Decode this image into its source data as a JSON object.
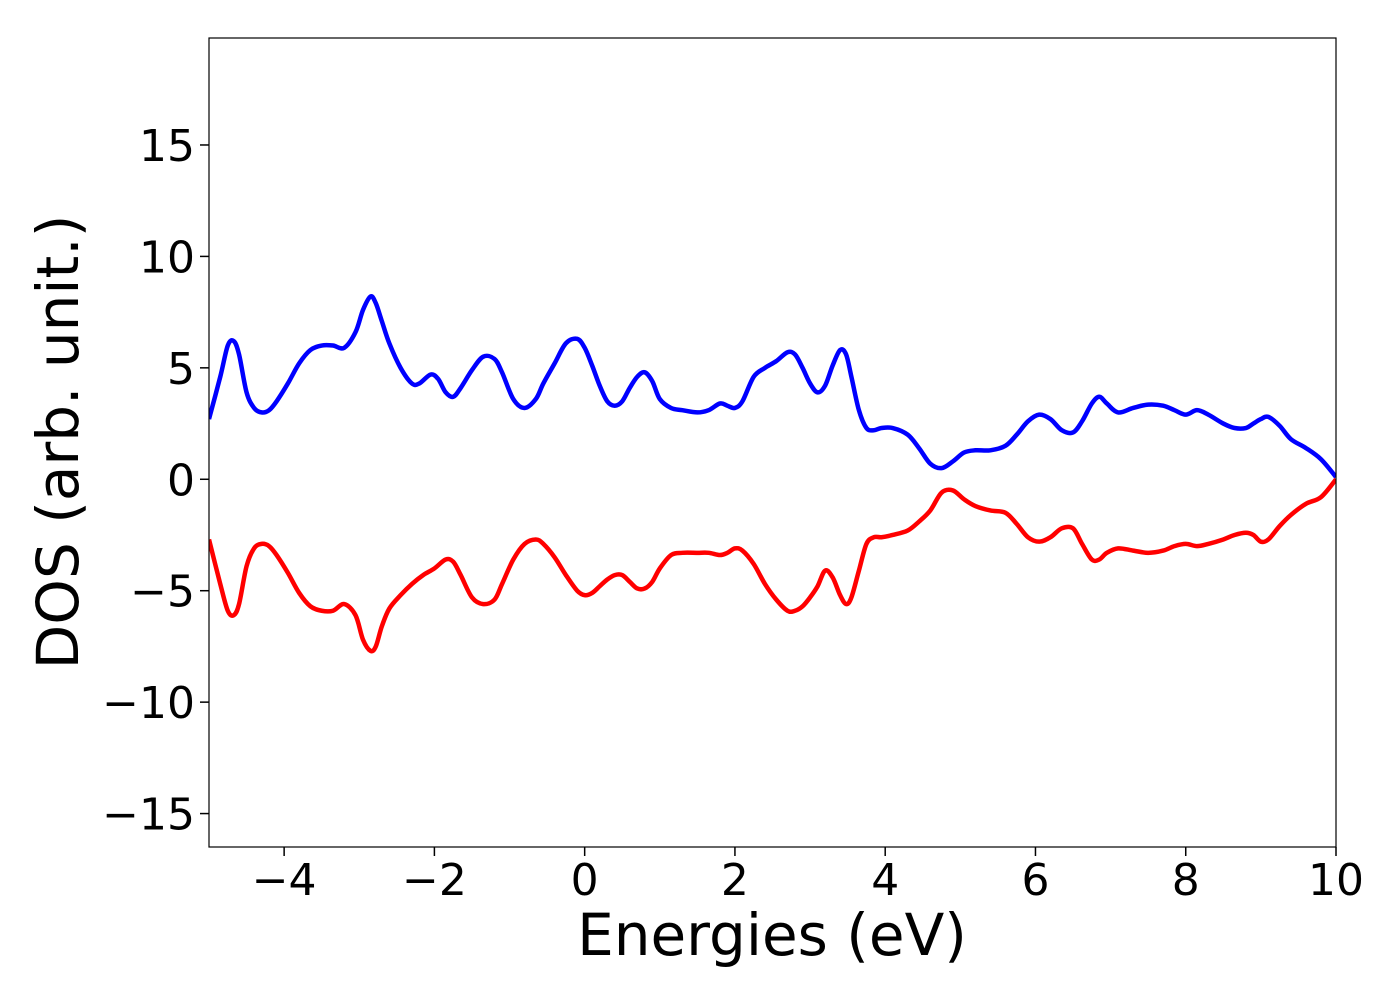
{
  "chart_data": {
    "type": "line",
    "xlabel": "Energies (eV)",
    "ylabel": "DOS (arb. unit.)",
    "xlim": [
      -5,
      10
    ],
    "ylim": [
      -16.5,
      19.8
    ],
    "xticks": [
      -4,
      -2,
      0,
      2,
      4,
      6,
      8,
      10
    ],
    "xtick_labels": [
      "−4",
      "−2",
      "0",
      "2",
      "4",
      "6",
      "8",
      "10"
    ],
    "yticks": [
      -15,
      -10,
      -5,
      0,
      5,
      10,
      15
    ],
    "ytick_labels": [
      "−15",
      "−10",
      "−5",
      "0",
      "5",
      "10",
      "15"
    ],
    "grid": false,
    "legend": "none",
    "series": [
      {
        "color": "#0000ff",
        "x": [
          -5.0,
          -4.85,
          -4.75,
          -4.67,
          -4.6,
          -4.5,
          -4.4,
          -4.3,
          -4.2,
          -4.1,
          -3.95,
          -3.8,
          -3.65,
          -3.5,
          -3.35,
          -3.2,
          -3.05,
          -2.95,
          -2.85,
          -2.78,
          -2.7,
          -2.6,
          -2.45,
          -2.3,
          -2.2,
          -2.05,
          -1.95,
          -1.85,
          -1.75,
          -1.65,
          -1.5,
          -1.35,
          -1.2,
          -1.1,
          -0.95,
          -0.8,
          -0.65,
          -0.55,
          -0.4,
          -0.25,
          -0.1,
          0.0,
          0.1,
          0.2,
          0.3,
          0.4,
          0.5,
          0.6,
          0.7,
          0.8,
          0.9,
          1.0,
          1.15,
          1.3,
          1.5,
          1.65,
          1.8,
          1.9,
          2.0,
          2.1,
          2.25,
          2.4,
          2.55,
          2.7,
          2.8,
          2.9,
          3.0,
          3.1,
          3.2,
          3.3,
          3.4,
          3.48,
          3.55,
          3.65,
          3.75,
          3.85,
          3.95,
          4.1,
          4.3,
          4.45,
          4.6,
          4.75,
          4.9,
          5.05,
          5.2,
          5.4,
          5.6,
          5.75,
          5.9,
          6.05,
          6.2,
          6.35,
          6.5,
          6.62,
          6.75,
          6.85,
          6.95,
          7.1,
          7.3,
          7.5,
          7.7,
          7.85,
          8.0,
          8.15,
          8.3,
          8.5,
          8.65,
          8.8,
          8.9,
          9.0,
          9.1,
          9.25,
          9.4,
          9.6,
          9.8,
          10.0
        ],
        "values": [
          2.7,
          4.6,
          6.0,
          6.2,
          5.6,
          3.9,
          3.2,
          3.0,
          3.1,
          3.5,
          4.3,
          5.2,
          5.8,
          6.0,
          6.0,
          5.9,
          6.6,
          7.6,
          8.2,
          7.9,
          7.1,
          6.1,
          5.0,
          4.3,
          4.3,
          4.7,
          4.5,
          3.9,
          3.7,
          4.1,
          4.9,
          5.5,
          5.4,
          4.8,
          3.6,
          3.2,
          3.6,
          4.3,
          5.2,
          6.1,
          6.3,
          5.9,
          5.1,
          4.2,
          3.5,
          3.3,
          3.5,
          4.1,
          4.6,
          4.8,
          4.4,
          3.6,
          3.2,
          3.1,
          3.0,
          3.1,
          3.4,
          3.3,
          3.2,
          3.5,
          4.6,
          5.0,
          5.3,
          5.7,
          5.6,
          5.0,
          4.3,
          3.9,
          4.2,
          5.1,
          5.8,
          5.6,
          4.6,
          3.1,
          2.3,
          2.2,
          2.3,
          2.3,
          2.0,
          1.4,
          0.7,
          0.5,
          0.8,
          1.2,
          1.3,
          1.3,
          1.5,
          2.0,
          2.6,
          2.9,
          2.7,
          2.2,
          2.1,
          2.6,
          3.4,
          3.7,
          3.4,
          3.0,
          3.2,
          3.35,
          3.3,
          3.1,
          2.9,
          3.1,
          2.9,
          2.5,
          2.3,
          2.3,
          2.5,
          2.7,
          2.8,
          2.4,
          1.8,
          1.4,
          0.9,
          0.1
        ]
      },
      {
        "color": "#ff0000",
        "x": [
          -5.0,
          -4.85,
          -4.75,
          -4.67,
          -4.6,
          -4.5,
          -4.4,
          -4.3,
          -4.2,
          -4.1,
          -3.95,
          -3.8,
          -3.65,
          -3.5,
          -3.35,
          -3.2,
          -3.05,
          -2.95,
          -2.85,
          -2.78,
          -2.7,
          -2.6,
          -2.45,
          -2.3,
          -2.15,
          -2.0,
          -1.85,
          -1.75,
          -1.65,
          -1.5,
          -1.35,
          -1.2,
          -1.1,
          -0.95,
          -0.8,
          -0.65,
          -0.55,
          -0.4,
          -0.25,
          -0.1,
          0.0,
          0.1,
          0.2,
          0.3,
          0.4,
          0.5,
          0.6,
          0.7,
          0.8,
          0.9,
          1.0,
          1.15,
          1.3,
          1.5,
          1.65,
          1.8,
          1.9,
          2.0,
          2.1,
          2.25,
          2.4,
          2.55,
          2.7,
          2.8,
          2.9,
          3.0,
          3.1,
          3.2,
          3.3,
          3.4,
          3.48,
          3.55,
          3.65,
          3.75,
          3.85,
          3.95,
          4.1,
          4.3,
          4.45,
          4.6,
          4.75,
          4.9,
          5.05,
          5.2,
          5.4,
          5.6,
          5.75,
          5.9,
          6.05,
          6.2,
          6.35,
          6.5,
          6.62,
          6.75,
          6.85,
          6.95,
          7.1,
          7.3,
          7.5,
          7.7,
          7.85,
          8.0,
          8.15,
          8.3,
          8.5,
          8.65,
          8.8,
          8.9,
          9.0,
          9.1,
          9.25,
          9.4,
          9.6,
          9.8,
          10.0
        ],
        "values": [
          -2.7,
          -4.7,
          -5.9,
          -6.1,
          -5.6,
          -3.9,
          -3.1,
          -2.9,
          -3.0,
          -3.4,
          -4.2,
          -5.1,
          -5.7,
          -5.9,
          -5.9,
          -5.6,
          -6.1,
          -7.2,
          -7.7,
          -7.5,
          -6.6,
          -5.8,
          -5.2,
          -4.7,
          -4.3,
          -4.0,
          -3.6,
          -3.7,
          -4.3,
          -5.3,
          -5.6,
          -5.4,
          -4.7,
          -3.6,
          -2.9,
          -2.7,
          -2.9,
          -3.5,
          -4.3,
          -5.0,
          -5.2,
          -5.1,
          -4.8,
          -4.5,
          -4.3,
          -4.3,
          -4.6,
          -4.9,
          -4.9,
          -4.6,
          -4.0,
          -3.4,
          -3.3,
          -3.3,
          -3.3,
          -3.4,
          -3.3,
          -3.1,
          -3.2,
          -3.8,
          -4.7,
          -5.4,
          -5.9,
          -5.9,
          -5.7,
          -5.3,
          -4.8,
          -4.1,
          -4.4,
          -5.2,
          -5.6,
          -5.3,
          -4.1,
          -2.9,
          -2.6,
          -2.6,
          -2.5,
          -2.3,
          -1.9,
          -1.4,
          -0.6,
          -0.5,
          -0.9,
          -1.2,
          -1.4,
          -1.5,
          -2.0,
          -2.6,
          -2.8,
          -2.6,
          -2.2,
          -2.2,
          -2.9,
          -3.6,
          -3.6,
          -3.3,
          -3.1,
          -3.2,
          -3.3,
          -3.2,
          -3.0,
          -2.9,
          -3.0,
          -2.9,
          -2.7,
          -2.5,
          -2.4,
          -2.5,
          -2.8,
          -2.7,
          -2.1,
          -1.6,
          -1.1,
          -0.8,
          0.0
        ]
      }
    ]
  }
}
